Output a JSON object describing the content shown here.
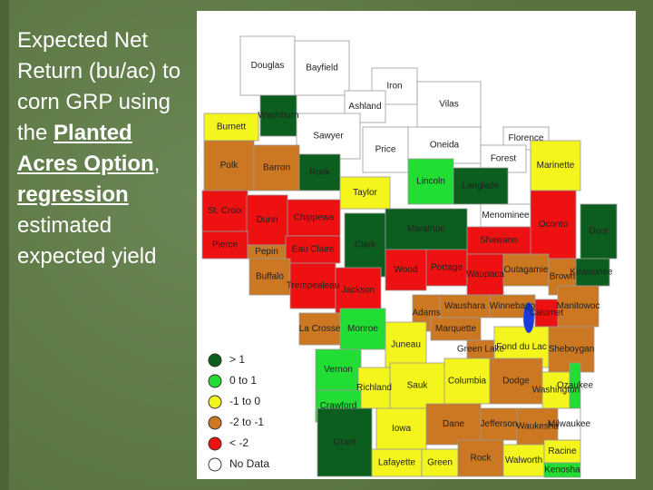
{
  "title": {
    "segments": [
      "Expected Net Return (bu/ac) to corn GRP using the ",
      "Planted Acres Option",
      ", ",
      "regression",
      " estimated expected yield"
    ]
  },
  "legend": [
    {
      "label": "> 1",
      "color": "#0b5e1e"
    },
    {
      "label": "0 to 1",
      "color": "#22dd33"
    },
    {
      "label": "-1 to 0",
      "color": "#f5f51e"
    },
    {
      "label": "-2 to -1",
      "color": "#cc7722"
    },
    {
      "label": "< -2",
      "color": "#ee1111"
    },
    {
      "label": "No Data",
      "color": "#ffffff"
    }
  ],
  "counties": [
    {
      "label": "Douglas",
      "color": "#ffffff"
    },
    {
      "label": "Bayfield",
      "color": "#ffffff"
    },
    {
      "label": "Iron",
      "color": "#ffffff"
    },
    {
      "label": "Ashland",
      "color": "#ffffff"
    },
    {
      "label": "Vilas",
      "color": "#ffffff"
    },
    {
      "label": "Burnett",
      "color": "#f5f51e"
    },
    {
      "label": "Washburn",
      "color": "#0b5e1e"
    },
    {
      "label": "Sawyer",
      "color": "#ffffff"
    },
    {
      "label": "Price",
      "color": "#ffffff"
    },
    {
      "label": "Oneida",
      "color": "#ffffff"
    },
    {
      "label": "Florence",
      "color": "#ffffff"
    },
    {
      "label": "Forest",
      "color": "#ffffff"
    },
    {
      "label": "Marinette",
      "color": "#f5f51e"
    },
    {
      "label": "Polk",
      "color": "#cc7722"
    },
    {
      "label": "Barron",
      "color": "#cc7722"
    },
    {
      "label": "Rusk",
      "color": "#0b5e1e"
    },
    {
      "label": "Taylor",
      "color": "#f5f51e"
    },
    {
      "label": "Lincoln",
      "color": "#22dd33"
    },
    {
      "label": "Langlade",
      "color": "#0b5e1e"
    },
    {
      "label": "Oconto",
      "color": "#ee1111"
    },
    {
      "label": "Menominee",
      "color": "#ffffff"
    },
    {
      "label": "St. Croix",
      "color": "#ee1111"
    },
    {
      "label": "Dunn",
      "color": "#ee1111"
    },
    {
      "label": "Chippewa",
      "color": "#ee1111"
    },
    {
      "label": "Clark",
      "color": "#0b5e1e"
    },
    {
      "label": "Marathon",
      "color": "#0b5e1e"
    },
    {
      "label": "Shawano",
      "color": "#ee1111"
    },
    {
      "label": "Door",
      "color": "#0b5e1e"
    },
    {
      "label": "Kewaunee",
      "color": "#0b5e1e"
    },
    {
      "label": "Pierce",
      "color": "#ee1111"
    },
    {
      "label": "Pepin",
      "color": "#cc7722"
    },
    {
      "label": "Eau Claire",
      "color": "#ee1111"
    },
    {
      "label": "Buffalo",
      "color": "#cc7722"
    },
    {
      "label": "Trempealeau",
      "color": "#ee1111"
    },
    {
      "label": "Jackson",
      "color": "#ee1111"
    },
    {
      "label": "Wood",
      "color": "#ee1111"
    },
    {
      "label": "Portage",
      "color": "#ee1111"
    },
    {
      "label": "Waupaca",
      "color": "#ee1111"
    },
    {
      "label": "Outagamie",
      "color": "#cc7722"
    },
    {
      "label": "Brown",
      "color": "#cc7722"
    },
    {
      "label": "Manitowoc",
      "color": "#cc7722"
    },
    {
      "label": "Winnebago",
      "color": "#cc7722"
    },
    {
      "label": "Calumet",
      "color": "#ee1111"
    },
    {
      "label": "Adams",
      "color": "#cc7722"
    },
    {
      "label": "Waushara",
      "color": "#cc7722"
    },
    {
      "label": "Marquette",
      "color": "#cc7722"
    },
    {
      "label": "Green Lake",
      "color": "#cc7722"
    },
    {
      "label": "Fond du Lac",
      "color": "#f5f51e"
    },
    {
      "label": "Sheboygan",
      "color": "#cc7722"
    },
    {
      "label": "La Crosse",
      "color": "#cc7722"
    },
    {
      "label": "Monroe",
      "color": "#22dd33"
    },
    {
      "label": "Juneau",
      "color": "#f5f51e"
    },
    {
      "label": "Vernon",
      "color": "#22dd33"
    },
    {
      "label": "Sauk",
      "color": "#f5f51e"
    },
    {
      "label": "Columbia",
      "color": "#f5f51e"
    },
    {
      "label": "Dodge",
      "color": "#cc7722"
    },
    {
      "label": "Washington",
      "color": "#f5f51e"
    },
    {
      "label": "Ozaukee",
      "color": "#22dd33"
    },
    {
      "label": "Richland",
      "color": "#f5f51e"
    },
    {
      "label": "Crawford",
      "color": "#22dd33"
    },
    {
      "label": "Grant",
      "color": "#0b5e1e"
    },
    {
      "label": "Iowa",
      "color": "#f5f51e"
    },
    {
      "label": "Dane",
      "color": "#cc7722"
    },
    {
      "label": "Jefferson",
      "color": "#cc7722"
    },
    {
      "label": "Waukesha",
      "color": "#cc7722"
    },
    {
      "label": "Milwaukee",
      "color": "#ffffff"
    },
    {
      "label": "Lafayette",
      "color": "#f5f51e"
    },
    {
      "label": "Green",
      "color": "#f5f51e"
    },
    {
      "label": "Rock",
      "color": "#cc7722"
    },
    {
      "label": "Walworth",
      "color": "#f5f51e"
    },
    {
      "label": "Racine",
      "color": "#f5f51e"
    },
    {
      "label": "Kenosha",
      "color": "#22dd33"
    }
  ]
}
